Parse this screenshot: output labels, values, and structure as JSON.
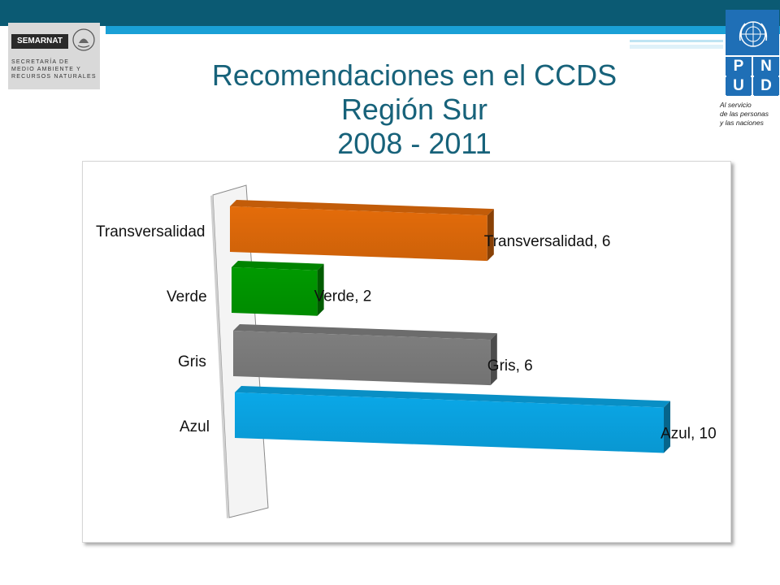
{
  "header": {
    "semarnat": {
      "name": "SEMARNAT",
      "lines": [
        "SECRETARÍA DE",
        "MEDIO AMBIENTE Y",
        "RECURSOS NATURALES"
      ]
    },
    "pnud": {
      "letters": [
        "P",
        "N",
        "U",
        "D"
      ],
      "tagline": [
        "Al servicio",
        "de las personas",
        "y las naciones"
      ]
    }
  },
  "title": {
    "line1": "Recomendaciones en el CCDS",
    "line2": "Región Sur",
    "line3": "2008 - 2011"
  },
  "chart_data": {
    "type": "bar",
    "orientation": "horizontal",
    "style": "3d",
    "categories": [
      "Transversalidad",
      "Verde",
      "Gris",
      "Azul"
    ],
    "values": [
      6,
      2,
      6,
      10
    ],
    "colors": [
      "#e46c0a",
      "#009a00",
      "#7f7f7f",
      "#0aa8e8"
    ],
    "data_labels": [
      "Transversalidad, 6",
      "Verde, 2",
      "Gris, 6",
      "Azul, 10"
    ],
    "xlabel": "",
    "ylabel": "",
    "xlim": [
      0,
      10
    ],
    "grid": false,
    "legend": "none"
  }
}
